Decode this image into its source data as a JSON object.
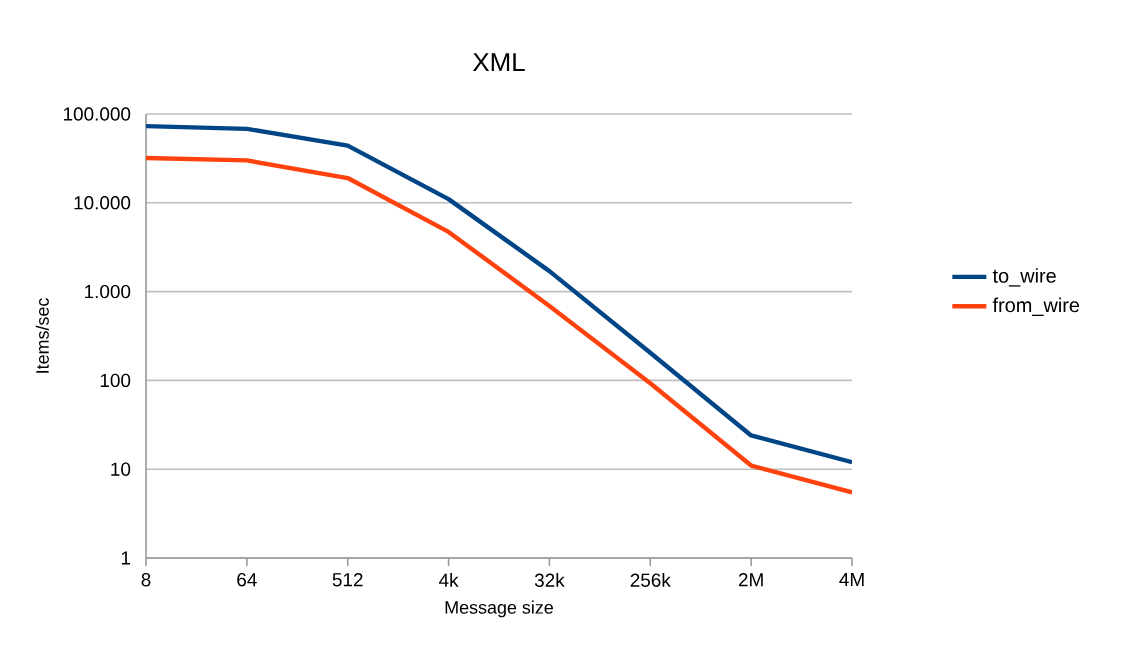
{
  "chart_data": {
    "type": "line",
    "title": "XML",
    "xlabel": "Message size",
    "ylabel": "Items/sec",
    "categories": [
      "8",
      "64",
      "512",
      "4k",
      "32k",
      "256k",
      "2M",
      "4M"
    ],
    "series": [
      {
        "name": "to_wire",
        "color": "#004586",
        "values": [
          73000,
          68000,
          44000,
          11000,
          1700,
          205,
          24,
          12
        ]
      },
      {
        "name": "from_wire",
        "color": "#ff420e",
        "values": [
          32000,
          30000,
          19000,
          4700,
          690,
          93,
          11,
          5.5
        ]
      }
    ],
    "log": "y",
    "ylim": [
      1,
      100000
    ],
    "yticks": [
      1,
      10,
      100,
      {
        "value": 1000,
        "label": "1.000"
      },
      {
        "value": 10000,
        "label": "10.000"
      },
      {
        "value": 100000,
        "label": "100.000"
      }
    ],
    "grid": "y",
    "legend": "right",
    "marker": "none",
    "line_style": "solid"
  }
}
